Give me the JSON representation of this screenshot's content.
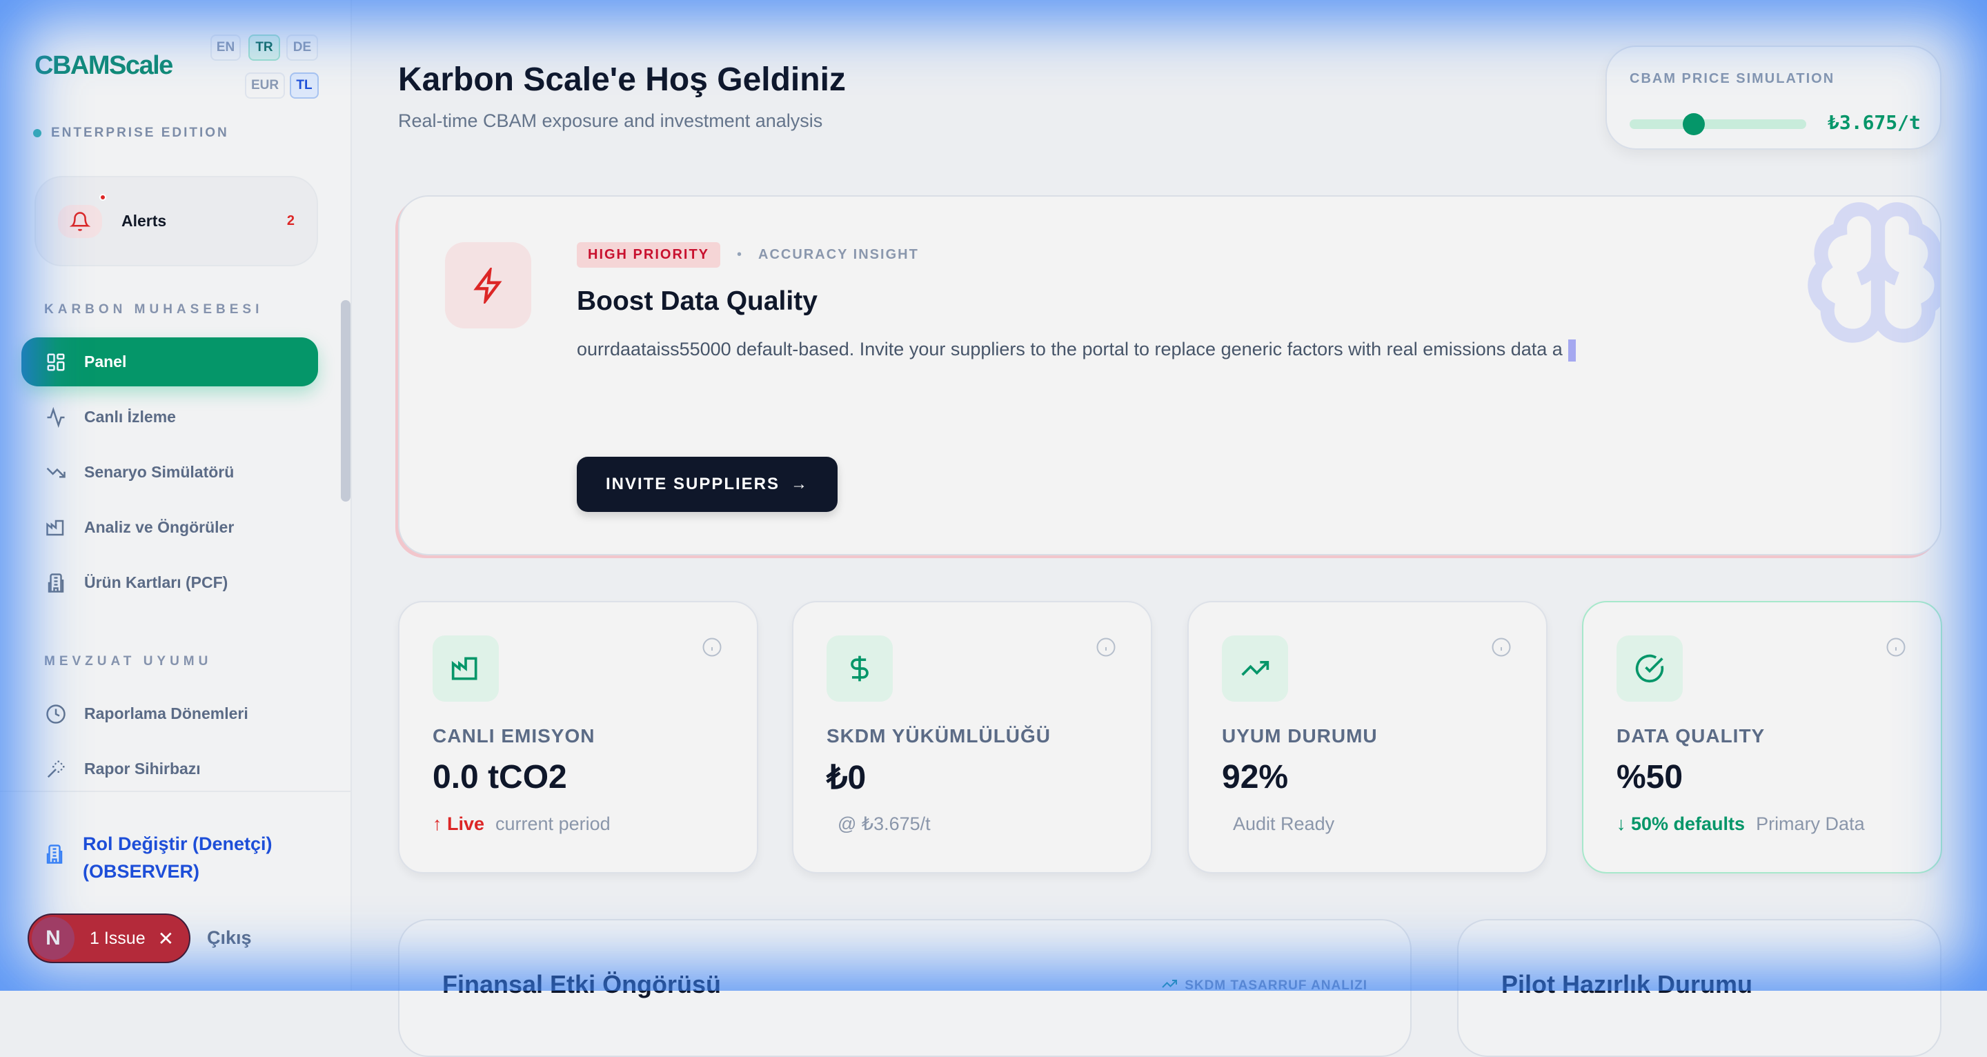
{
  "sidebar": {
    "logo": "CBAMScale",
    "languages": [
      "EN",
      "TR",
      "DE"
    ],
    "active_language": "TR",
    "currencies": [
      "EUR",
      "TL"
    ],
    "active_currency": "TL",
    "edition": "ENTERPRISE EDITION",
    "alerts": {
      "label": "Alerts",
      "count": "2"
    },
    "sections": [
      {
        "title": "KARBON MUHASEBESI",
        "items": [
          {
            "label": "Panel",
            "icon": "layout-grid-icon",
            "active": true
          },
          {
            "label": "Canlı İzleme",
            "icon": "activity-icon"
          },
          {
            "label": "Senaryo Simülatörü",
            "icon": "trending-down-icon"
          },
          {
            "label": "Analiz ve Öngörüler",
            "icon": "factory-icon"
          },
          {
            "label": "Ürün Kartları (PCF)",
            "icon": "building-icon"
          }
        ]
      },
      {
        "title": "MEVZUAT UYUMU",
        "items": [
          {
            "label": "Raporlama Dönemleri",
            "icon": "clock-icon"
          },
          {
            "label": "Rapor Sihirbazı",
            "icon": "magic-wand-icon"
          }
        ]
      }
    ],
    "role_switch": "Rol Değiştir (Denetçi) (OBSERVER)",
    "role_line1": "Rol Değiştir (Denetçi)",
    "role_line2": "(OBSERVER)",
    "logout": "Çıkış"
  },
  "issue_badge": {
    "letter": "N",
    "label": "1 Issue"
  },
  "header": {
    "title": "Karbon Scale'e Hoş Geldiniz",
    "subtitle": "Real-time CBAM exposure and investment analysis"
  },
  "price_sim": {
    "label": "CBAM PRICE SIMULATION",
    "value": "₺3.675/t",
    "slider_fraction": 0.3
  },
  "insight": {
    "priority": "HIGH PRIORITY",
    "category": "ACCURACY INSIGHT",
    "title": "Boost Data Quality",
    "body": "ourrdaataiss55000 default-based. Invite your suppliers to the portal to replace generic factors with real emissions data a",
    "button": "INVITE SUPPLIERS"
  },
  "stats": [
    {
      "label": "CANLI EMISYON",
      "value": "0.0 tCO2",
      "trend": "↑ Live",
      "note": "current period",
      "icon": "factory-icon"
    },
    {
      "label": "SKDM YÜKÜMLÜLÜĞÜ",
      "value": "₺0",
      "trend": "",
      "note": "@ ₺3.675/t",
      "icon": "dollar-icon"
    },
    {
      "label": "UYUM DURUMU",
      "value": "92%",
      "trend": "",
      "note": "Audit Ready",
      "icon": "trending-up-icon"
    },
    {
      "label": "DATA QUALITY",
      "value": "%50",
      "trend": "↓ 50% defaults",
      "note": "Primary Data",
      "icon": "check-circle-icon"
    }
  ],
  "panels": {
    "financial": {
      "title": "Finansal Etki Öngörüsü",
      "tag": "SKDM TASARRUF ANALIZI"
    },
    "pilot": {
      "title": "Pilot Hazırlık Durumu"
    }
  },
  "colors": {
    "accent": "#059669",
    "danger": "#dc2626",
    "dark": "#0f172a",
    "link": "#1d4ed8"
  }
}
